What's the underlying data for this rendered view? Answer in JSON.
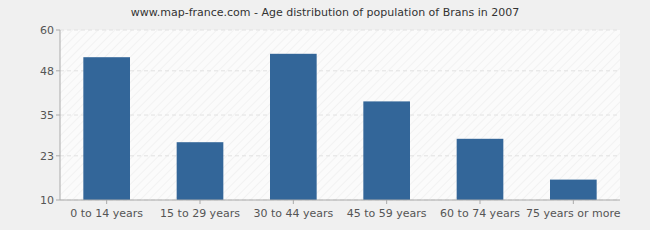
{
  "chart_data": {
    "type": "bar",
    "title": "www.map-france.com - Age distribution of population of Brans in 2007",
    "categories": [
      "0 to 14 years",
      "15 to 29 years",
      "30 to 44 years",
      "45 to 59 years",
      "60 to 74 years",
      "75 years or more"
    ],
    "values": [
      52,
      27,
      53,
      39,
      28,
      16
    ],
    "color": "#336699",
    "ylim": [
      10,
      60
    ],
    "yticks": [
      10,
      23,
      35,
      48,
      60
    ],
    "grid": true
  }
}
